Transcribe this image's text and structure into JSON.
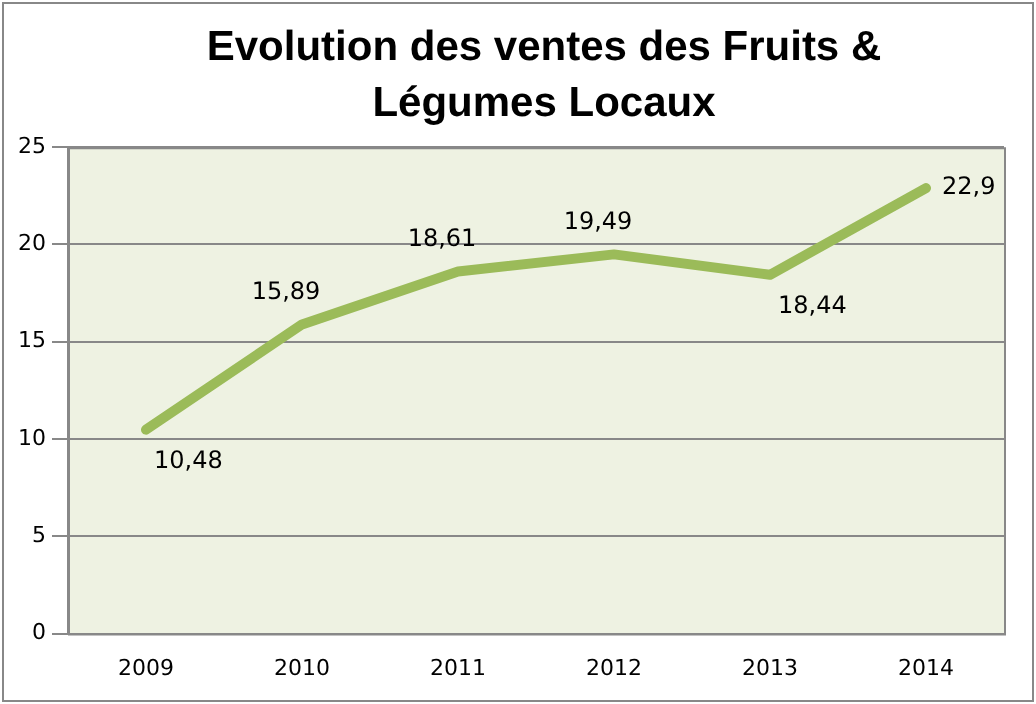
{
  "chart_data": {
    "type": "line",
    "title": "Evolution des ventes des Fruits & Légumes Locaux",
    "categories": [
      "2009",
      "2010",
      "2011",
      "2012",
      "2013",
      "2014"
    ],
    "series": [
      {
        "color": "#9bbb59",
        "values": [
          10.48,
          15.89,
          18.61,
          19.49,
          18.44,
          22.9
        ]
      }
    ],
    "value_labels": [
      "10,48",
      "15,89",
      "18,61",
      "19,49",
      "18,44",
      "22,9"
    ],
    "ylim": [
      0,
      25
    ],
    "yticks": [
      0,
      5,
      10,
      15,
      20,
      25
    ],
    "grid": "y",
    "legend": false,
    "marker": "none",
    "line_style": "solid"
  }
}
